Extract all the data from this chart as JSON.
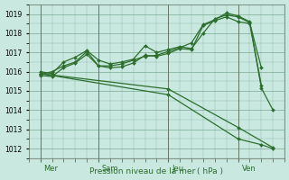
{
  "xlabel": "Pression niveau de la mer ( hPa )",
  "bg_color": "#c8e8e0",
  "grid_color": "#5a9070",
  "line_color": "#2d6e2d",
  "ylim": [
    1011.5,
    1019.5
  ],
  "yticks": [
    1012,
    1013,
    1014,
    1015,
    1016,
    1017,
    1018,
    1019
  ],
  "day_labels": [
    "Mer",
    "Sam",
    "Jeu",
    "Ven"
  ],
  "day_positions": [
    0.5,
    3.0,
    6.5,
    9.0
  ],
  "vline_positions": [
    0.0,
    2.5,
    5.5,
    8.5
  ],
  "xlim": [
    -0.5,
    10.5
  ],
  "line1_x": [
    0,
    0.5,
    1,
    1.5,
    2,
    2.5,
    3,
    3.5,
    4,
    4.5,
    5,
    5.5,
    6,
    6.5,
    7,
    7.5,
    8,
    8.5,
    9,
    9.5
  ],
  "line1_y": [
    1016.0,
    1015.9,
    1016.5,
    1016.75,
    1017.1,
    1016.6,
    1016.4,
    1016.5,
    1016.65,
    1017.35,
    1017.0,
    1017.15,
    1017.3,
    1017.2,
    1018.0,
    1018.75,
    1018.95,
    1018.85,
    1018.55,
    1016.2
  ],
  "line2_x": [
    0,
    0.5,
    1,
    1.5,
    2,
    2.5,
    3,
    3.5,
    4,
    4.5,
    5,
    5.5,
    6,
    6.5,
    7,
    7.5,
    8,
    8.5,
    9,
    9.5
  ],
  "line2_y": [
    1015.8,
    1015.75,
    1016.2,
    1016.45,
    1016.9,
    1016.3,
    1016.2,
    1016.25,
    1016.45,
    1016.85,
    1016.8,
    1016.95,
    1017.2,
    1017.15,
    1018.4,
    1018.65,
    1018.85,
    1018.6,
    1018.5,
    1015.3
  ],
  "line3_x": [
    0,
    0.5,
    1,
    1.5,
    2,
    2.5,
    3,
    3.5,
    4,
    4.5,
    5,
    5.5,
    6,
    6.5,
    7,
    7.5,
    8,
    8.5,
    9,
    9.5,
    10
  ],
  "line3_y": [
    1015.85,
    1016.0,
    1016.3,
    1016.5,
    1017.05,
    1016.3,
    1016.3,
    1016.4,
    1016.6,
    1016.8,
    1016.85,
    1017.05,
    1017.25,
    1017.5,
    1018.45,
    1018.7,
    1019.05,
    1018.9,
    1018.6,
    1015.15,
    1014.0
  ],
  "line4_x": [
    0,
    5.5,
    8.5,
    10
  ],
  "line4_y": [
    1015.9,
    1015.1,
    1013.1,
    1012.05
  ],
  "line5_x": [
    0,
    5.5,
    8.5,
    9.5,
    10
  ],
  "line5_y": [
    1015.9,
    1014.8,
    1012.5,
    1012.2,
    1012.0
  ],
  "marker": "D",
  "markersize": 2.0,
  "linewidth": 0.9
}
